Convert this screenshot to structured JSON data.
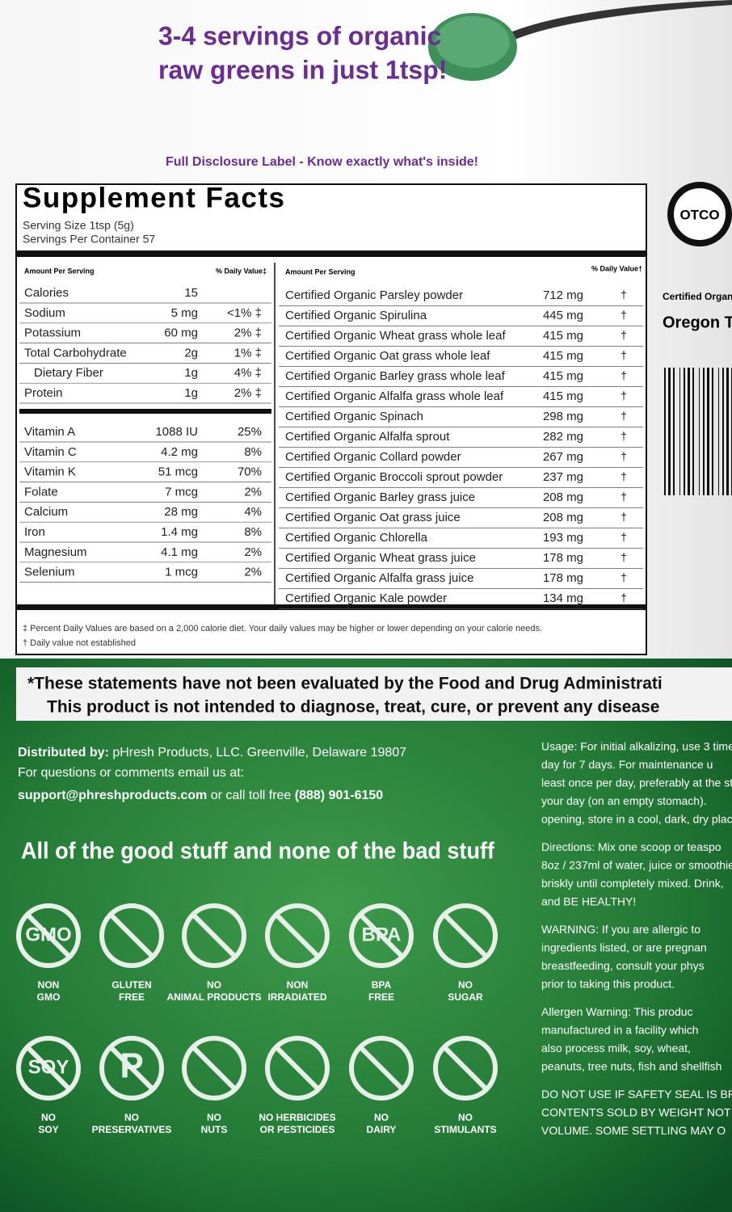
{
  "header": {
    "headline_lines": [
      "3-4 servings of organic",
      "raw greens in just 1tsp!"
    ],
    "tagline": "Full Disclosure Label - Know exactly what's inside!"
  },
  "facts": {
    "title": "Supplement Facts",
    "serving_size": "Serving Size 1tsp (5g)",
    "servings_per_container": "Servings Per Container 57",
    "left_header": [
      "Amount Per Serving",
      "% Daily Value‡"
    ],
    "nutrients": [
      [
        "Calories",
        "15"
      ],
      [
        "Sodium",
        "5 mg",
        "<1% ‡"
      ],
      [
        "Potassium",
        "60 mg",
        "2% ‡"
      ],
      [
        "Total Carbohydrate",
        "2g",
        "1% ‡"
      ],
      [
        "Dietary Fiber",
        "1g",
        "4% ‡"
      ],
      [
        "Protein",
        "1g",
        "2% ‡"
      ]
    ],
    "vitamins": [
      [
        "Vitamin A",
        "1088 IU",
        "25%"
      ],
      [
        "Vitamin C",
        "4.2 mg",
        "8%"
      ],
      [
        "Vitamin K",
        "51 mcg",
        "70%"
      ],
      [
        "Folate",
        "7 mcg",
        "2%"
      ],
      [
        "Calcium",
        "28 mg",
        "4%"
      ],
      [
        "Iron",
        "1.4 mg",
        "8%"
      ],
      [
        "Magnesium",
        "4.1 mg",
        "2%"
      ],
      [
        "Selenium",
        "1 mcg",
        "2%"
      ]
    ],
    "right_header": [
      "Amount Per Serving",
      "% Daily Value†"
    ],
    "ingredients": [
      [
        "Certified Organic Parsley powder",
        "712 mg",
        "†"
      ],
      [
        "Certified Organic Spirulina",
        "445 mg",
        "†"
      ],
      [
        "Certified Organic Wheat grass whole leaf",
        "415 mg",
        "†"
      ],
      [
        "Certified Organic Oat grass whole leaf",
        "415 mg",
        "†"
      ],
      [
        "Certified Organic Barley grass whole leaf",
        "415 mg",
        "†"
      ],
      [
        "Certified Organic Alfalfa grass whole leaf",
        "415 mg",
        "†"
      ],
      [
        "Certified Organic Spinach",
        "298 mg",
        "†"
      ],
      [
        "Certified Organic Alfalfa sprout",
        "282 mg",
        "†"
      ],
      [
        "Certified Organic Collard powder",
        "267 mg",
        "†"
      ],
      [
        "Certified Organic Broccoli sprout powder",
        "237 mg",
        "†"
      ],
      [
        "Certified Organic Barley grass juice",
        "208 mg",
        "†"
      ],
      [
        "Certified Organic Oat grass juice",
        "208 mg",
        "†"
      ],
      [
        "Certified Organic Chlorella",
        "193 mg",
        "†"
      ],
      [
        "Certified Organic Wheat grass juice",
        "178 mg",
        "†"
      ],
      [
        "Certified Organic Alfalfa grass juice",
        "178 mg",
        "†"
      ],
      [
        "Certified Organic Kale powder",
        "134 mg",
        "†"
      ]
    ],
    "footnotes": [
      "‡ Percent Daily Values are based on a 2,000 calorie diet. Your daily values may be higher or lower depending on your calorie needs.",
      "† Daily value not established"
    ]
  },
  "certification": {
    "logo": "OTCO",
    "lines": [
      "Certified Organ",
      "Oregon T"
    ]
  },
  "disclaimer": [
    "*These statements have not been evaluated by the Food and Drug Administrati",
    "This product is not intended to diagnose, treat, cure, or prevent any disease"
  ],
  "distributor": [
    {
      "bold": "Distributed by:",
      "text": " pHresh Products, LLC. Greenville, Delaware  19807"
    },
    {
      "text": "For questions or comments email us at:"
    },
    {
      "bold": "support@phreshproducts.com",
      "text": " or call toll free ",
      "bold2": "(888) 901-6150"
    }
  ],
  "slogan": "All of the good stuff and none of the bad stuff",
  "icons": [
    {
      "symbol": "GMO",
      "label_lines": [
        "NON",
        "GMO"
      ]
    },
    {
      "label_lines": [
        "GLUTEN",
        "FREE"
      ]
    },
    {
      "label_lines": [
        "NO",
        "ANIMAL PRODUCTS"
      ]
    },
    {
      "label_lines": [
        "NON",
        "IRRADIATED"
      ]
    },
    {
      "symbol": "BPA",
      "label_lines": [
        "BPA",
        "FREE"
      ]
    },
    {
      "label_lines": [
        "NO",
        "SUGAR"
      ]
    },
    {
      "symbol": "SOY",
      "label_lines": [
        "NO",
        "SOY"
      ]
    },
    {
      "symbol": "P",
      "label_lines": [
        "NO",
        "PRESERVATIVES"
      ]
    },
    {
      "label_lines": [
        "NO",
        "NUTS"
      ]
    },
    {
      "label_lines": [
        "NO HERBICIDES",
        "OR PESTICIDES"
      ]
    },
    {
      "label_lines": [
        "NO",
        "DAIRY"
      ]
    },
    {
      "label_lines": [
        "NO",
        "STIMULANTS"
      ]
    }
  ],
  "directions": [
    [
      "Usage: For initial alkalizing, use 3 time",
      "day for 7 days.  For maintenance u",
      "least once per day, preferably at the st",
      "your day (on an empty stomach).",
      "opening, store in a cool, dark, dry place"
    ],
    [
      "Directions: Mix one scoop or teaspo",
      "8oz / 237ml of water, juice or smoothie",
      "briskly until completely mixed. Drink,",
      "and BE HEALTHY!"
    ],
    [
      "WARNING: If you are allergic to",
      "ingredients listed, or are pregnan",
      "breastfeeding, consult your phys",
      "prior to taking this product."
    ],
    [
      "Allergen Warning: This produc",
      "manufactured in a facility which",
      "also process milk, soy, wheat,",
      "peanuts, tree nuts, fish and shellfish"
    ],
    [
      "DO NOT USE IF SAFETY SEAL IS BRO",
      "CONTENTS SOLD BY WEIGHT NOT",
      "VOLUME. SOME SETTLING MAY O"
    ]
  ]
}
